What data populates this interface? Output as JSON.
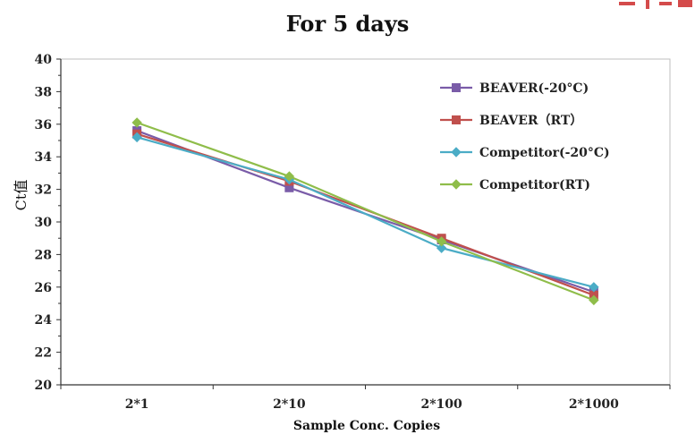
{
  "chart_data": {
    "type": "line",
    "title": "For 5 days",
    "xlabel": "Sample Conc. Copies",
    "ylabel": "Ct值",
    "categories": [
      "2*1",
      "2*10",
      "2*100",
      "2*1000"
    ],
    "ylim": [
      20,
      40
    ],
    "yticks": [
      20,
      22,
      24,
      26,
      28,
      30,
      32,
      34,
      36,
      38,
      40
    ],
    "grid": false,
    "legend_position": "top-right",
    "series": [
      {
        "name": "BEAVER(-20°C)",
        "color": "#7a5ca8",
        "marker": "square",
        "values": [
          35.6,
          32.1,
          28.9,
          25.7
        ]
      },
      {
        "name": "BEAVER（RT）",
        "color": "#c0504d",
        "marker": "square",
        "values": [
          35.4,
          32.5,
          29.0,
          25.5
        ]
      },
      {
        "name": "Competitor(-20°C)",
        "color": "#4bacc6",
        "marker": "diamond",
        "values": [
          35.2,
          32.6,
          28.4,
          26.0
        ]
      },
      {
        "name": "Competitor(RT)",
        "color": "#8fbd4a",
        "marker": "diamond",
        "values": [
          36.1,
          32.8,
          28.8,
          25.2
        ]
      }
    ]
  }
}
